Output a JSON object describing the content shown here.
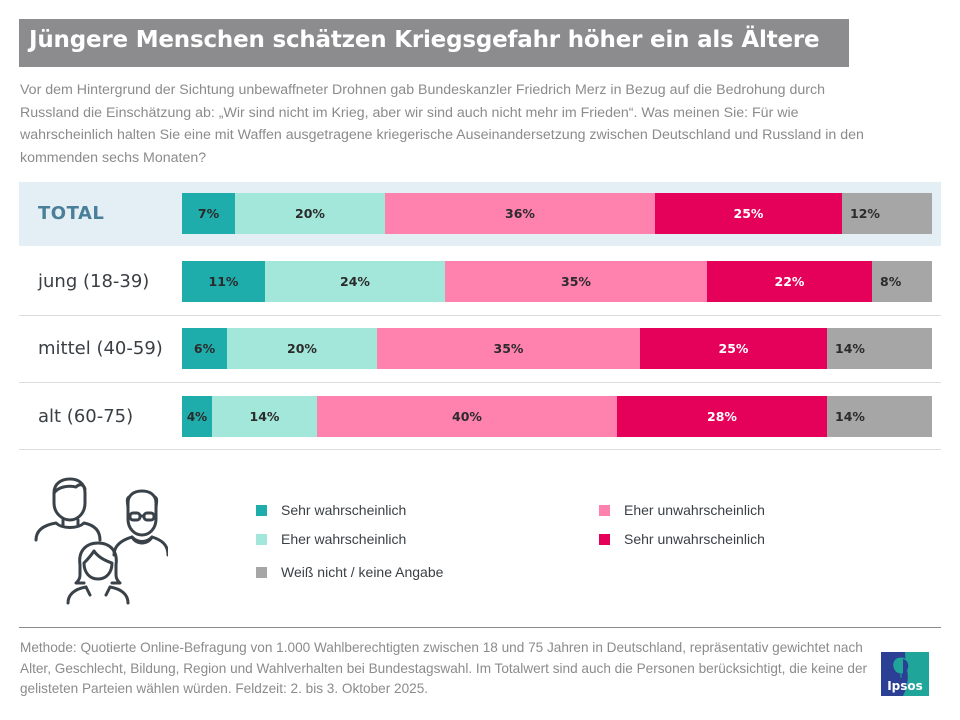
{
  "header": {
    "title": "Jüngere Menschen schätzen Kriegsgefahr höher ein als Ältere",
    "subtitle": "Vor dem Hintergrund der Sichtung unbewaffneter Drohnen gab Bundeskanzler Friedrich Merz in Bezug auf die Bedrohung durch Russland die Einschätzung ab: „Wir sind nicht im Krieg, aber wir sind auch nicht mehr im Frieden“. Was meinen Sie: Für wie wahrscheinlich halten Sie eine mit Waffen ausgetragene kriegerische Auseinandersetzung zwischen Deutschland und Russland in den kommenden sechs Monaten?"
  },
  "colors": {
    "title_bg": "#8c8c8e",
    "total_band": "#e3eff4",
    "sehr_wahrscheinlich": "#1fadac",
    "eher_wahrscheinlich": "#a3e6da",
    "eher_unwahrscheinlich": "#ff82ae",
    "sehr_unwahrscheinlich": "#e5005a",
    "weiss_nicht": "#a6a6a6"
  },
  "chart_data": {
    "type": "bar",
    "orientation": "horizontal",
    "stacked": true,
    "unit": "%",
    "title": "Jüngere Menschen schätzen Kriegsgefahr höher ein als Ältere",
    "categories": [
      "TOTAL",
      "jung (18-39)",
      "mittel (40-59)",
      "alt (60-75)"
    ],
    "series": [
      {
        "name": "Sehr wahrscheinlich",
        "color": "#1fadac",
        "label_color": "#2b2b2b",
        "values": [
          7,
          11,
          6,
          4
        ]
      },
      {
        "name": "Eher wahrscheinlich",
        "color": "#a3e6da",
        "label_color": "#2b2b2b",
        "values": [
          20,
          24,
          20,
          14
        ]
      },
      {
        "name": "Eher unwahrscheinlich",
        "color": "#ff82ae",
        "label_color": "#2b2b2b",
        "values": [
          36,
          35,
          35,
          40
        ]
      },
      {
        "name": "Sehr unwahrscheinlich",
        "color": "#e5005a",
        "label_color": "#ffffff",
        "values": [
          25,
          22,
          25,
          28
        ]
      },
      {
        "name": "Weiß nicht / keine Angabe",
        "color": "#a6a6a6",
        "label_color": "#2b2b2b",
        "values": [
          12,
          8,
          14,
          14
        ]
      }
    ],
    "xlim": [
      0,
      100
    ],
    "grid": false,
    "legend_position": "bottom"
  },
  "legend": [
    {
      "label": "Sehr wahrscheinlich",
      "color": "#1fadac"
    },
    {
      "label": "Eher wahrscheinlich",
      "color": "#a3e6da"
    },
    {
      "label": "Weiß nicht / keine Angabe",
      "color": "#a6a6a6"
    },
    {
      "label": "Eher unwahrscheinlich",
      "color": "#ff82ae"
    },
    {
      "label": "Sehr unwahrscheinlich",
      "color": "#e5005a"
    }
  ],
  "footer": {
    "method": "Methode: Quotierte Online-Befragung von 1.000 Wahlberechtigten zwischen 18 und 75 Jahren in Deutschland, repräsentativ gewichtet nach Alter, Geschlecht, Bildung, Region und Wahlverhalten bei Bundestagswahl. Im Totalwert sind auch die Personen berücksichtigt, die keine der gelisteten Parteien wählen würden. Feldzeit: 2. bis 3. Oktober 2025."
  },
  "logo": {
    "text": "Ipsos"
  },
  "icons": {
    "people": "people-group-icon"
  }
}
